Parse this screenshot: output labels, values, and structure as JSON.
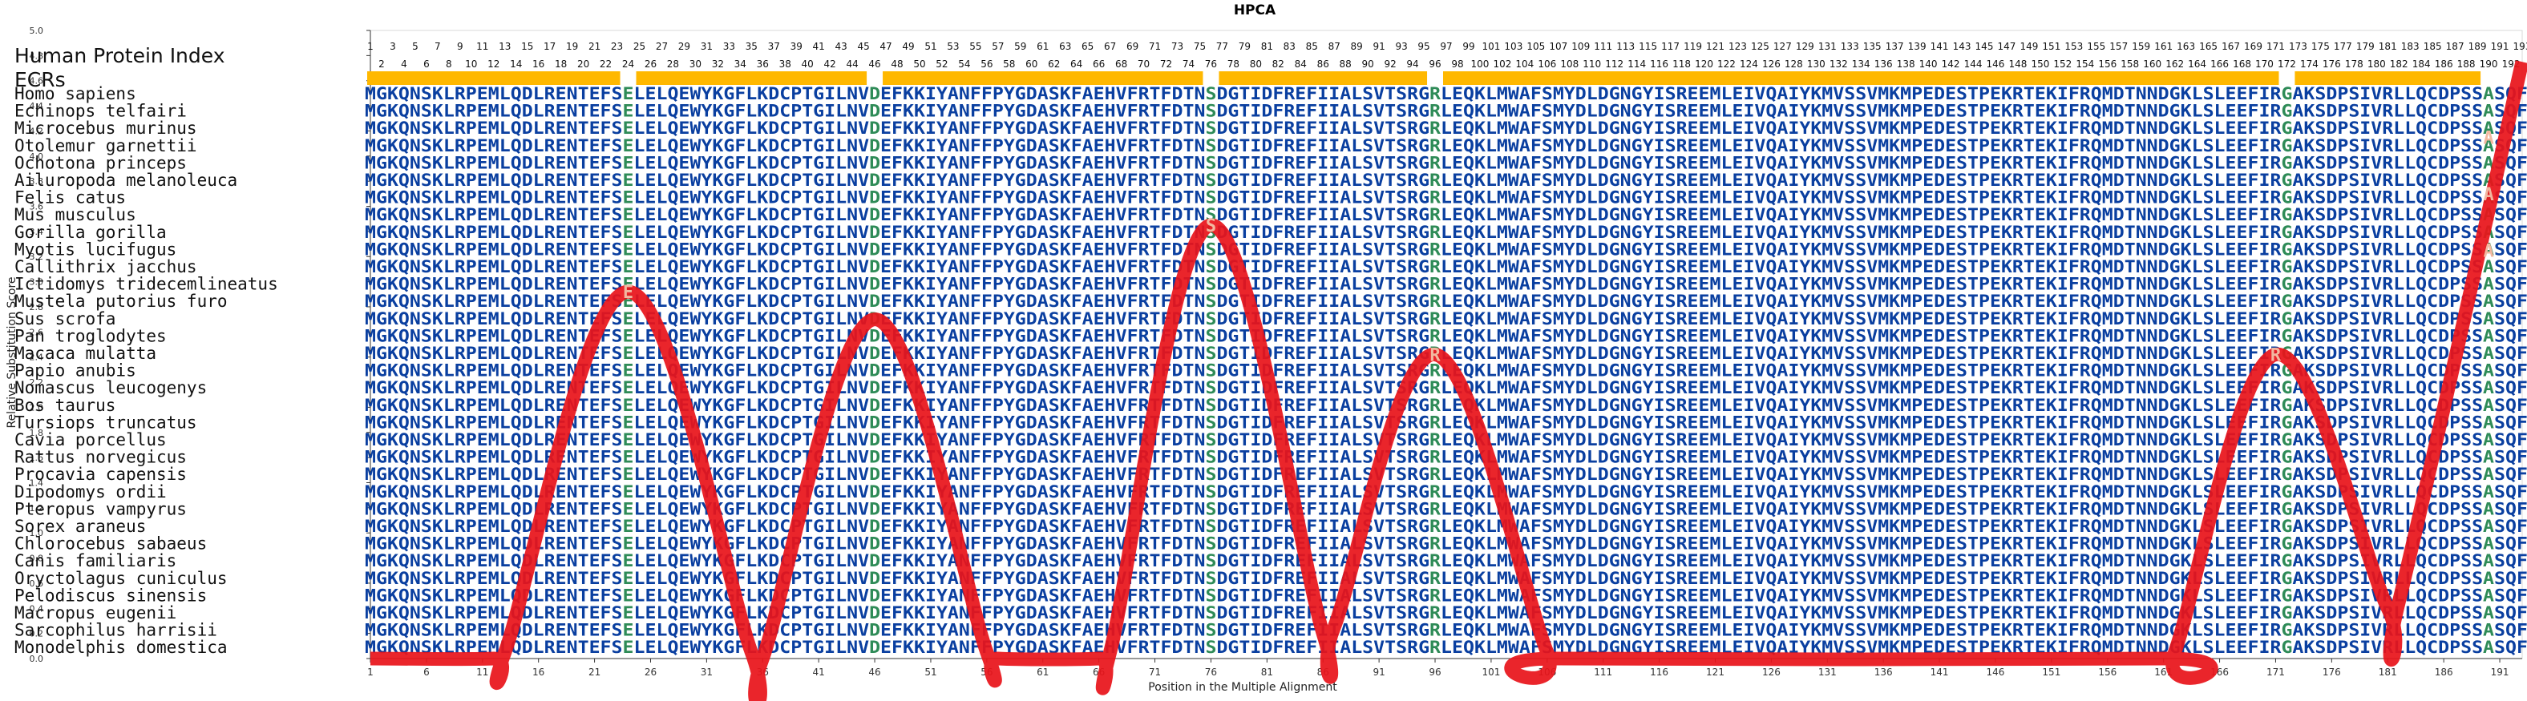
{
  "chart_data": {
    "type": "line",
    "title": "HPCA",
    "xlabel": "Position in the Multiple Alignment",
    "ylabel": "Relative Substitution Score",
    "ylim": [
      0,
      5
    ],
    "xlim": [
      1,
      193
    ],
    "yticks": [
      "0.0",
      "0.2",
      "0.4",
      "0.6",
      "0.8",
      "1.0",
      "1.2",
      "1.4",
      "1.6",
      "1.8",
      "2.0",
      "2.2",
      "2.4",
      "2.6",
      "2.8",
      "3.0",
      "3.2",
      "3.4",
      "3.6",
      "3.8",
      "4.0",
      "4.2",
      "4.4",
      "4.6",
      "4.8",
      "5.0"
    ],
    "xticks": [
      "1",
      "6",
      "11",
      "16",
      "21",
      "26",
      "31",
      "36",
      "41",
      "46",
      "51",
      "56",
      "61",
      "66",
      "71",
      "76",
      "81",
      "86",
      "91",
      "96",
      "101",
      "106",
      "111",
      "116",
      "121",
      "126",
      "131",
      "136",
      "141",
      "146",
      "151",
      "156",
      "161",
      "166",
      "171",
      "176",
      "181",
      "186",
      "191"
    ],
    "human_protein_index_label": "Human Protein Index",
    "ecrs_label": "ECRs",
    "ecr_color": "#FFB800",
    "line_color": "#E8141B",
    "residue_color": "#0A3FA0",
    "substitution_color": "#2E8B57",
    "ecr_segments": [
      [
        1,
        23
      ],
      [
        25,
        45
      ],
      [
        47,
        75
      ],
      [
        77,
        95
      ],
      [
        97,
        171
      ],
      [
        173,
        189
      ]
    ],
    "series": [
      {
        "x": [
          1,
          12,
          13,
          24,
          35,
          36,
          46,
          56,
          57,
          66,
          67,
          76,
          86,
          87,
          96,
          106,
          107,
          161,
          162,
          171,
          181,
          182,
          193
        ],
        "values": [
          0,
          0,
          0.05,
          2.92,
          0.05,
          0,
          2.7,
          0.05,
          0,
          0,
          0.05,
          3.45,
          0.2,
          0.25,
          2.42,
          0.05,
          0,
          0,
          0.05,
          2.42,
          0.4,
          0.45,
          4.75
        ]
      }
    ],
    "substitution_positions": [
      24,
      46,
      76,
      96,
      172,
      190
    ],
    "line_labels": [
      {
        "x": 24,
        "y": 2.92,
        "text": "E"
      },
      {
        "x": 76,
        "y": 3.45,
        "text": "S"
      },
      {
        "x": 96,
        "y": 2.42,
        "text": "R"
      },
      {
        "x": 171,
        "y": 2.42,
        "text": "R"
      },
      {
        "x": 190,
        "y": 4.15,
        "text": "A"
      },
      {
        "x": 190,
        "y": 3.7,
        "text": "A"
      },
      {
        "x": 190,
        "y": 3.25,
        "text": "A"
      }
    ],
    "alignment_sequence": "MGKQNSKLRPEMLQDLRENTEFSELELQEWYKGFLKDCPTGILNVDEFKKIYANFFPYGDASKFAEHVFRTFDTNSDGTIDFREFIIALSVTSRGRLEQKLMWAFSMYDLDGNGYISREEMLEIVQAIYKMVSSVMKMPEDESTPEKRTEKIFRQMDTNNDGKLSLEEFIRGAKSDPSIVRLLQCDPSSASQF",
    "species": [
      "Homo sapiens",
      "Echinops telfairi",
      "Microcebus murinus",
      "Otolemur garnettii",
      "Ochotona princeps",
      "Ailuropoda melanoleuca",
      "Felis catus",
      "Mus musculus",
      "Gorilla gorilla",
      "Myotis lucifugus",
      "Callithrix jacchus",
      "Ictidomys tridecemlineatus",
      "Mustela putorius furo",
      "Sus scrofa",
      "Pan troglodytes",
      "Macaca mulatta",
      "Papio anubis",
      "Nomascus leucogenys",
      "Bos taurus",
      "Tursiops truncatus",
      "Cavia porcellus",
      "Rattus norvegicus",
      "Procavia capensis",
      "Dipodomys ordii",
      "Pteropus vampyrus",
      "Sorex araneus",
      "Chlorocebus sabaeus",
      "Canis familiaris",
      "Oryctolagus cuniculus",
      "Pelodiscus sinensis",
      "Macropus eugenii",
      "Sarcophilus harrisii",
      "Monodelphis domestica"
    ]
  }
}
